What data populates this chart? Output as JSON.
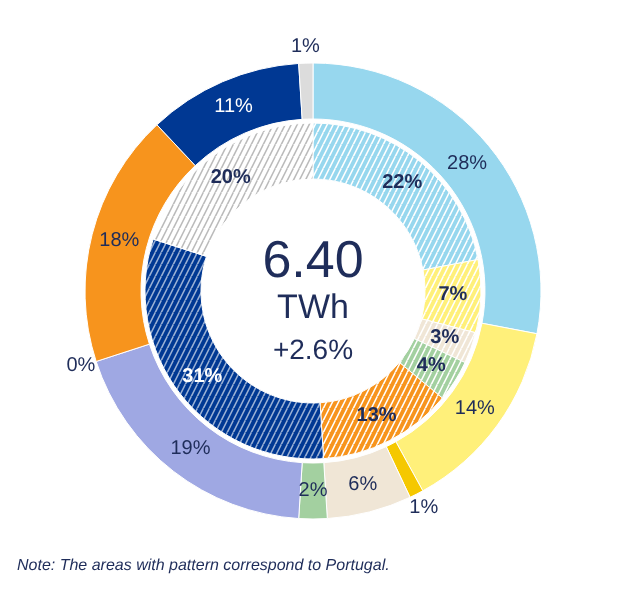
{
  "chart_data": {
    "type": "donut",
    "title": "6.40",
    "subtitle": "TWh",
    "annotations": [
      "+2.6%",
      "Note: The  areas with pattern correspond  to Portugal."
    ],
    "series": [
      {
        "values": [
          28,
          14,
          1,
          6,
          2,
          19,
          0,
          18,
          11,
          1
        ],
        "colors": [
          "#97d7ee",
          "#fff07a",
          "#f5c800",
          "#f0e6d6",
          "#a3d0a0",
          "#9fa8e3",
          "#f7941d",
          "#f7941d",
          "#003893",
          "#dcdcdc"
        ],
        "value_labels": [
          "28%",
          "14%",
          "1%",
          "6%",
          "2%",
          "19%",
          "0%",
          "18%",
          "11%",
          "1%"
        ]
      },
      {
        "values": [
          22,
          7,
          3,
          4,
          13,
          31,
          20
        ],
        "colors": [
          "#97d7ee",
          "#fff07a",
          "#f0e6d6",
          "#a3d0a0",
          "#f7941d",
          "#003893",
          "#ffffff"
        ],
        "value_labels": [
          "22%",
          "7%",
          "3%",
          "4%",
          "13%",
          "31%",
          "20%"
        ]
      }
    ]
  }
}
